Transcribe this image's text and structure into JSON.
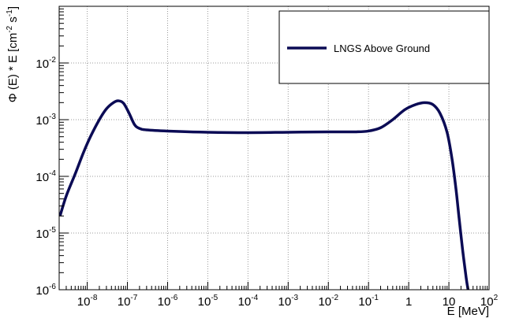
{
  "chart_data": {
    "type": "line",
    "x_scale": "log",
    "y_scale": "log",
    "xlim": [
      2e-09,
      100
    ],
    "ylim": [
      1e-06,
      0.1
    ],
    "xlabel": "E [MeV]",
    "ylabel": {
      "prefix": "Φ (E) * E [cm",
      "sup1": "-2",
      "mid": " s",
      "sup2": "-1",
      "suffix": "]"
    },
    "grid": true,
    "legend_position": "top-right",
    "x_ticks": [
      {
        "value": 1e-08,
        "base": "10",
        "exp": "-8"
      },
      {
        "value": 1e-07,
        "base": "10",
        "exp": "-7"
      },
      {
        "value": 1e-06,
        "base": "10",
        "exp": "-6"
      },
      {
        "value": 1e-05,
        "base": "10",
        "exp": "-5"
      },
      {
        "value": 0.0001,
        "base": "10",
        "exp": "-4"
      },
      {
        "value": 0.001,
        "base": "10",
        "exp": "-3"
      },
      {
        "value": 0.01,
        "base": "10",
        "exp": "-2"
      },
      {
        "value": 0.1,
        "base": "10",
        "exp": "-1"
      },
      {
        "value": 1,
        "base": "1",
        "exp": ""
      },
      {
        "value": 10,
        "base": "10",
        "exp": ""
      },
      {
        "value": 100,
        "base": "10",
        "exp": "2"
      }
    ],
    "y_ticks": [
      {
        "value": 1e-06,
        "base": "10",
        "exp": "-6"
      },
      {
        "value": 1e-05,
        "base": "10",
        "exp": "-5"
      },
      {
        "value": 0.0001,
        "base": "10",
        "exp": "-4"
      },
      {
        "value": 0.001,
        "base": "10",
        "exp": "-3"
      },
      {
        "value": 0.01,
        "base": "10",
        "exp": "-2"
      }
    ],
    "series": [
      {
        "name": "LNGS Above Ground",
        "color": "#0b0b55",
        "points": [
          [
            2.1e-09,
            2e-05
          ],
          [
            3e-09,
            4.5e-05
          ],
          [
            5e-09,
            0.00011
          ],
          [
            8e-09,
            0.00026
          ],
          [
            1.2e-08,
            0.0005
          ],
          [
            2e-08,
            0.001
          ],
          [
            3e-08,
            0.00155
          ],
          [
            4.5e-08,
            0.002
          ],
          [
            6e-08,
            0.00215
          ],
          [
            8e-08,
            0.00195
          ],
          [
            1.1e-07,
            0.0013
          ],
          [
            1.5e-07,
            0.00082
          ],
          [
            2e-07,
            0.0007
          ],
          [
            3e-07,
            0.00066
          ],
          [
            1e-06,
            0.00063
          ],
          [
            1e-05,
            0.0006
          ],
          [
            0.0001,
            0.00059
          ],
          [
            0.001,
            0.0006
          ],
          [
            0.01,
            0.00061
          ],
          [
            0.05,
            0.00061
          ],
          [
            0.1,
            0.00063
          ],
          [
            0.2,
            0.00072
          ],
          [
            0.4,
            0.001
          ],
          [
            0.8,
            0.0015
          ],
          [
            1.5,
            0.00185
          ],
          [
            2.5,
            0.002
          ],
          [
            4,
            0.00185
          ],
          [
            6,
            0.0013
          ],
          [
            9,
            0.0006
          ],
          [
            12,
            0.0002
          ],
          [
            15,
            6e-05
          ],
          [
            18,
            1.8e-05
          ],
          [
            22,
            5e-06
          ],
          [
            27,
            1.6e-06
          ],
          [
            30,
            1e-06
          ]
        ]
      }
    ]
  }
}
